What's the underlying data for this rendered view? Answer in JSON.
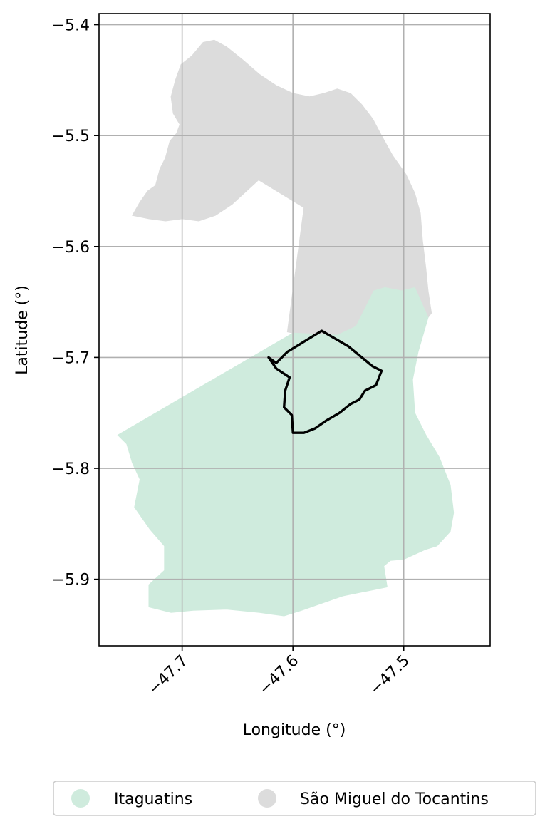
{
  "map": {
    "xlabel": "Longitude (°)",
    "ylabel": "Latitude (°)",
    "x_ticks": [
      {
        "value": -47.7,
        "label": "−47.7"
      },
      {
        "value": -47.6,
        "label": "−47.6"
      },
      {
        "value": -47.5,
        "label": "−47.5"
      }
    ],
    "y_ticks": [
      {
        "value": -5.4,
        "label": "−5.4"
      },
      {
        "value": -5.5,
        "label": "−5.5"
      },
      {
        "value": -5.6,
        "label": "−5.6"
      },
      {
        "value": -5.7,
        "label": "−5.7"
      },
      {
        "value": -5.8,
        "label": "−5.8"
      },
      {
        "value": -5.9,
        "label": "−5.9"
      }
    ],
    "xlim": [
      -47.775,
      -47.422
    ],
    "ylim": [
      -5.96,
      -5.39
    ],
    "grid": true,
    "legend_position": "bottom"
  },
  "legend": {
    "items": [
      {
        "label": "Itaguatins",
        "color": "#cfebdd"
      },
      {
        "label": "São Miguel do Tocantins",
        "color": "#dcdcdc"
      }
    ]
  },
  "regions": [
    {
      "name": "São Miguel do Tocantins",
      "color": "#dcdcdc",
      "coords": [
        [
          -47.745,
          -5.572
        ],
        [
          -47.738,
          -5.56
        ],
        [
          -47.731,
          -5.55
        ],
        [
          -47.724,
          -5.545
        ],
        [
          -47.72,
          -5.53
        ],
        [
          -47.715,
          -5.52
        ],
        [
          -47.711,
          -5.505
        ],
        [
          -47.705,
          -5.498
        ],
        [
          -47.702,
          -5.49
        ],
        [
          -47.708,
          -5.48
        ],
        [
          -47.71,
          -5.465
        ],
        [
          -47.706,
          -5.45
        ],
        [
          -47.701,
          -5.436
        ],
        [
          -47.691,
          -5.428
        ],
        [
          -47.681,
          -5.416
        ],
        [
          -47.671,
          -5.414
        ],
        [
          -47.66,
          -5.42
        ],
        [
          -47.645,
          -5.432
        ],
        [
          -47.63,
          -5.445
        ],
        [
          -47.615,
          -5.455
        ],
        [
          -47.6,
          -5.462
        ],
        [
          -47.585,
          -5.465
        ],
        [
          -47.572,
          -5.462
        ],
        [
          -47.56,
          -5.458
        ],
        [
          -47.548,
          -5.462
        ],
        [
          -47.538,
          -5.472
        ],
        [
          -47.528,
          -5.485
        ],
        [
          -47.52,
          -5.5
        ],
        [
          -47.51,
          -5.518
        ],
        [
          -47.498,
          -5.535
        ],
        [
          -47.49,
          -5.552
        ],
        [
          -47.485,
          -5.57
        ],
        [
          -47.483,
          -5.595
        ],
        [
          -47.48,
          -5.62
        ],
        [
          -47.478,
          -5.64
        ],
        [
          -47.475,
          -5.66
        ],
        [
          -47.478,
          -5.664
        ],
        [
          -47.49,
          -5.637
        ],
        [
          -47.502,
          -5.64
        ],
        [
          -47.517,
          -5.637
        ],
        [
          -47.527,
          -5.64
        ],
        [
          -47.533,
          -5.652
        ],
        [
          -47.543,
          -5.672
        ],
        [
          -47.56,
          -5.68
        ],
        [
          -47.6,
          -5.678
        ],
        [
          -47.605,
          -5.677
        ],
        [
          -47.59,
          -5.565
        ],
        [
          -47.631,
          -5.54
        ],
        [
          -47.655,
          -5.562
        ],
        [
          -47.67,
          -5.572
        ],
        [
          -47.685,
          -5.577
        ],
        [
          -47.7,
          -5.575
        ],
        [
          -47.715,
          -5.577
        ],
        [
          -47.73,
          -5.575
        ],
        [
          -47.745,
          -5.572
        ]
      ]
    },
    {
      "name": "Itaguatins",
      "color": "#cfebdd",
      "coords": [
        [
          -47.758,
          -5.77
        ],
        [
          -47.6,
          -5.678
        ],
        [
          -47.56,
          -5.68
        ],
        [
          -47.543,
          -5.672
        ],
        [
          -47.533,
          -5.652
        ],
        [
          -47.527,
          -5.64
        ],
        [
          -47.517,
          -5.637
        ],
        [
          -47.502,
          -5.64
        ],
        [
          -47.49,
          -5.637
        ],
        [
          -47.478,
          -5.664
        ],
        [
          -47.487,
          -5.695
        ],
        [
          -47.492,
          -5.72
        ],
        [
          -47.49,
          -5.75
        ],
        [
          -47.48,
          -5.77
        ],
        [
          -47.468,
          -5.79
        ],
        [
          -47.458,
          -5.815
        ],
        [
          -47.455,
          -5.84
        ],
        [
          -47.458,
          -5.857
        ],
        [
          -47.47,
          -5.87
        ],
        [
          -47.48,
          -5.873
        ],
        [
          -47.5,
          -5.882
        ],
        [
          -47.512,
          -5.883
        ],
        [
          -47.518,
          -5.888
        ],
        [
          -47.515,
          -5.907
        ],
        [
          -47.53,
          -5.91
        ],
        [
          -47.555,
          -5.915
        ],
        [
          -47.575,
          -5.922
        ],
        [
          -47.592,
          -5.928
        ],
        [
          -47.608,
          -5.933
        ],
        [
          -47.63,
          -5.93
        ],
        [
          -47.66,
          -5.927
        ],
        [
          -47.69,
          -5.928
        ],
        [
          -47.71,
          -5.93
        ],
        [
          -47.73,
          -5.925
        ],
        [
          -47.73,
          -5.905
        ],
        [
          -47.716,
          -5.892
        ],
        [
          -47.716,
          -5.87
        ],
        [
          -47.729,
          -5.855
        ],
        [
          -47.743,
          -5.835
        ],
        [
          -47.738,
          -5.81
        ],
        [
          -47.745,
          -5.795
        ],
        [
          -47.75,
          -5.778
        ],
        [
          -47.758,
          -5.77
        ]
      ]
    }
  ],
  "highlight_outline": {
    "color": "#000000",
    "coords": [
      [
        -47.574,
        -5.676
      ],
      [
        -47.55,
        -5.69
      ],
      [
        -47.528,
        -5.708
      ],
      [
        -47.52,
        -5.712
      ],
      [
        -47.525,
        -5.725
      ],
      [
        -47.535,
        -5.73
      ],
      [
        -47.54,
        -5.738
      ],
      [
        -47.548,
        -5.742
      ],
      [
        -47.558,
        -5.75
      ],
      [
        -47.57,
        -5.757
      ],
      [
        -47.58,
        -5.764
      ],
      [
        -47.59,
        -5.768
      ],
      [
        -47.6,
        -5.768
      ],
      [
        -47.601,
        -5.752
      ],
      [
        -47.608,
        -5.745
      ],
      [
        -47.607,
        -5.73
      ],
      [
        -47.603,
        -5.718
      ],
      [
        -47.615,
        -5.71
      ],
      [
        -47.622,
        -5.7
      ],
      [
        -47.615,
        -5.705
      ],
      [
        -47.605,
        -5.695
      ],
      [
        -47.574,
        -5.676
      ]
    ]
  }
}
